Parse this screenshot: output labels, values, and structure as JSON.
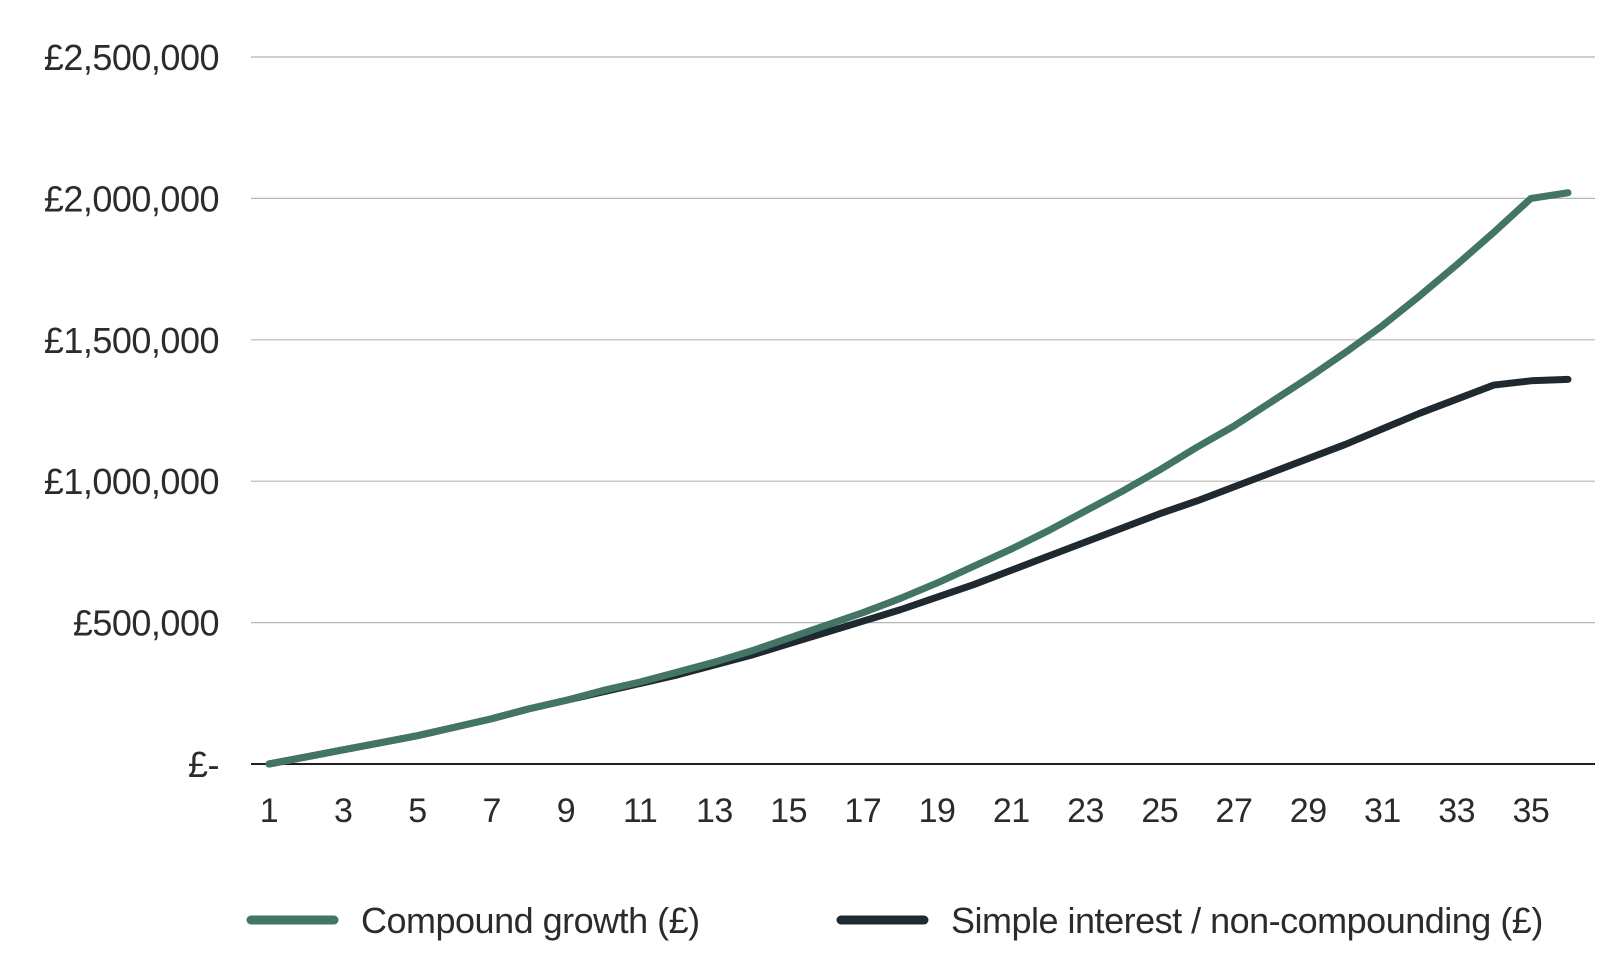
{
  "chart_data": {
    "type": "line",
    "x": [
      1,
      2,
      3,
      4,
      5,
      6,
      7,
      8,
      9,
      10,
      11,
      12,
      13,
      14,
      15,
      16,
      17,
      18,
      19,
      20,
      21,
      22,
      23,
      24,
      25,
      26,
      27,
      28,
      29,
      30,
      31,
      32,
      33,
      34,
      35,
      36
    ],
    "x_tick_labels": [
      "1",
      "3",
      "5",
      "7",
      "9",
      "11",
      "13",
      "15",
      "17",
      "19",
      "21",
      "23",
      "25",
      "27",
      "29",
      "31",
      "33",
      "35"
    ],
    "y_tick_labels": [
      "£-",
      "£500,000",
      "£1,000,000",
      "£1,500,000",
      "£2,000,000",
      "£2,500,000"
    ],
    "y_ticks": [
      0,
      500000,
      1000000,
      1500000,
      2000000,
      2500000
    ],
    "ylim": [
      0,
      2500000
    ],
    "grid": "horizontal",
    "legend_position": "bottom",
    "series": [
      {
        "name": "Compound growth (£)",
        "color": "#427563",
        "values": [
          0,
          25000,
          50000,
          75000,
          100000,
          130000,
          160000,
          195000,
          225000,
          260000,
          290000,
          325000,
          360000,
          400000,
          445000,
          490000,
          535000,
          585000,
          640000,
          700000,
          760000,
          825000,
          895000,
          965000,
          1040000,
          1120000,
          1195000,
          1280000,
          1365000,
          1455000,
          1550000,
          1655000,
          1765000,
          1880000,
          2000000,
          2020000
        ]
      },
      {
        "name": "Simple interest / non-compounding (£)",
        "color": "#1f2a30",
        "values": [
          0,
          25000,
          50000,
          75000,
          100000,
          130000,
          160000,
          195000,
          225000,
          255000,
          285000,
          315000,
          350000,
          385000,
          425000,
          465000,
          505000,
          545000,
          590000,
          635000,
          685000,
          735000,
          785000,
          835000,
          885000,
          930000,
          980000,
          1030000,
          1080000,
          1130000,
          1185000,
          1240000,
          1290000,
          1340000,
          1355000,
          1360000
        ]
      }
    ]
  }
}
